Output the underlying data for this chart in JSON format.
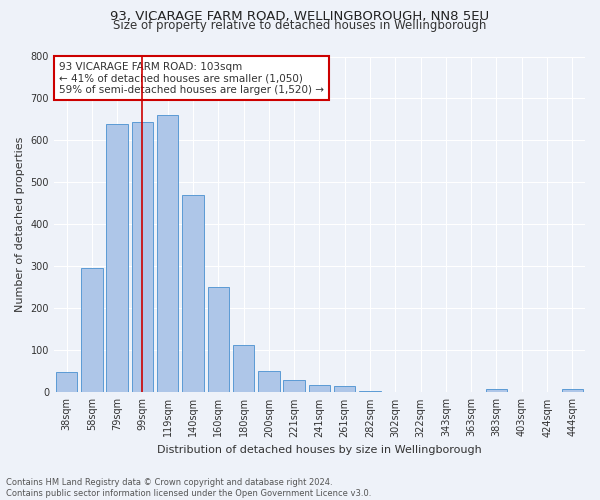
{
  "title1": "93, VICARAGE FARM ROAD, WELLINGBOROUGH, NN8 5EU",
  "title2": "Size of property relative to detached houses in Wellingborough",
  "xlabel": "Distribution of detached houses by size in Wellingborough",
  "ylabel": "Number of detached properties",
  "categories": [
    "38sqm",
    "58sqm",
    "79sqm",
    "99sqm",
    "119sqm",
    "140sqm",
    "160sqm",
    "180sqm",
    "200sqm",
    "221sqm",
    "241sqm",
    "261sqm",
    "282sqm",
    "302sqm",
    "322sqm",
    "343sqm",
    "363sqm",
    "383sqm",
    "403sqm",
    "424sqm",
    "444sqm"
  ],
  "values": [
    48,
    296,
    640,
    645,
    660,
    470,
    252,
    113,
    50,
    30,
    17,
    16,
    3,
    1,
    1,
    1,
    0,
    8,
    1,
    1,
    8
  ],
  "bar_color": "#aec6e8",
  "bar_edge_color": "#5b9bd5",
  "vline_x_index": 3,
  "vline_color": "#cc0000",
  "annotation_text": "93 VICARAGE FARM ROAD: 103sqm\n← 41% of detached houses are smaller (1,050)\n59% of semi-detached houses are larger (1,520) →",
  "annotation_box_color": "#ffffff",
  "annotation_box_edge_color": "#cc0000",
  "annotation_fontsize": 7.5,
  "bg_color": "#eef2f9",
  "grid_color": "#ffffff",
  "ylim": [
    0,
    800
  ],
  "yticks": [
    0,
    100,
    200,
    300,
    400,
    500,
    600,
    700,
    800
  ],
  "footnote": "Contains HM Land Registry data © Crown copyright and database right 2024.\nContains public sector information licensed under the Open Government Licence v3.0.",
  "title1_fontsize": 9.5,
  "title2_fontsize": 8.5,
  "xlabel_fontsize": 8,
  "ylabel_fontsize": 8,
  "tick_fontsize": 7
}
